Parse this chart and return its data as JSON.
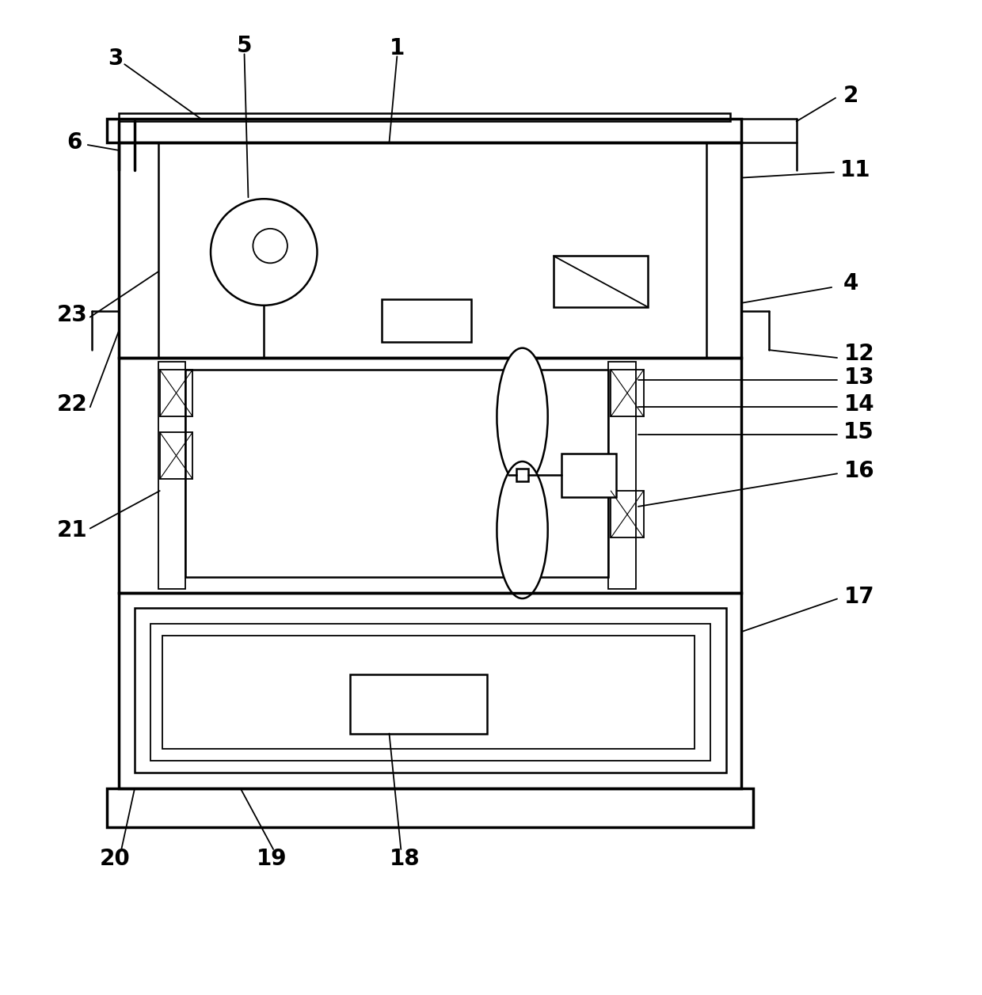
{
  "bg_color": "#ffffff",
  "line_color": "#000000",
  "lw_heavy": 2.5,
  "lw_med": 1.8,
  "lw_light": 1.3,
  "fig_width": 12.4,
  "fig_height": 12.57,
  "label_fontsize": 20
}
